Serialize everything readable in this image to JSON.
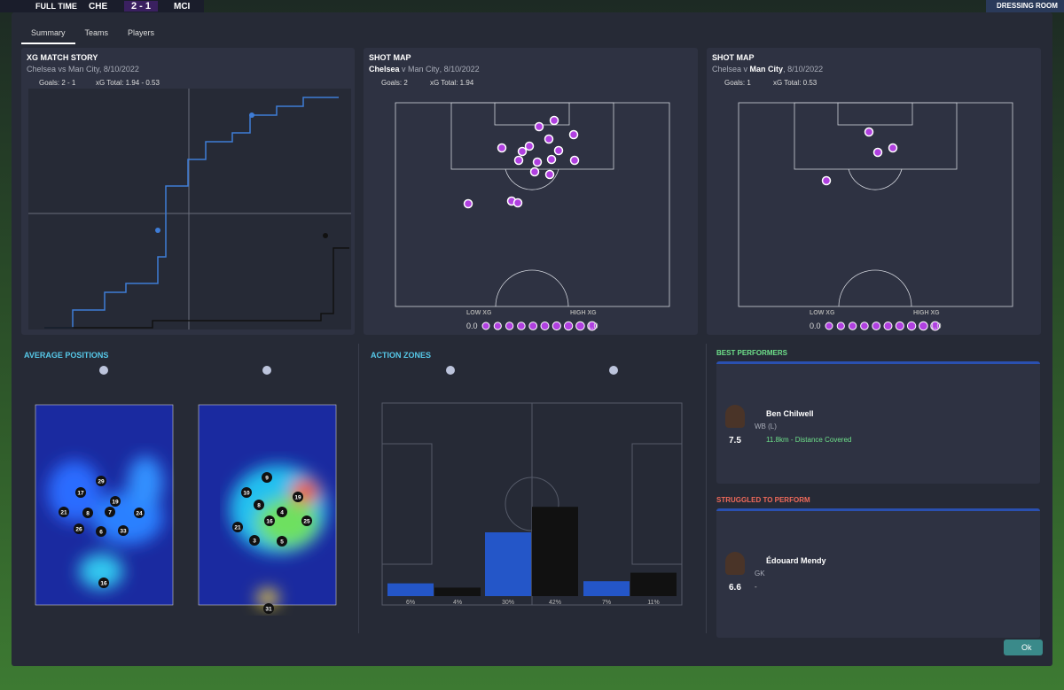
{
  "header": {
    "status": "FULL TIME",
    "home": "CHE",
    "score": "2 - 1",
    "away": "MCI",
    "button": "DRESSING ROOM"
  },
  "tabs": [
    "Summary",
    "Teams",
    "Players"
  ],
  "xg_story": {
    "title": "XG MATCH STORY",
    "subtitle": "Chelsea vs Man City, 8/10/2022",
    "goals": "Goals: 2 - 1",
    "xg": "xG Total: 1.94 - 0.53"
  },
  "shot_maps": [
    {
      "title": "SHOT MAP",
      "home": "Chelsea",
      "sep": " v ",
      "away": "Man City",
      "date": ", 8/10/2022",
      "goals": "Goals: 2",
      "xg": "xG Total: 1.94",
      "low": "LOW XG",
      "high": "HIGH XG",
      "min": "0.0",
      "max": "1.0"
    },
    {
      "title": "SHOT MAP",
      "home": "Chelsea",
      "sep": " v ",
      "away": "Man City",
      "date": ", 8/10/2022",
      "goals": "Goals: 1",
      "xg": "xG Total: 0.53",
      "low": "LOW XG",
      "high": "HIGH XG",
      "min": "0.0",
      "max": "1.0"
    }
  ],
  "average_positions": {
    "title": "AVERAGE POSITIONS",
    "home": [
      "29",
      "17",
      "19",
      "21",
      "8",
      "7",
      "24",
      "26",
      "6",
      "33",
      "16"
    ],
    "away": [
      "9",
      "10",
      "19",
      "8",
      "4",
      "16",
      "25",
      "21",
      "3",
      "5",
      "31"
    ]
  },
  "action_zones": {
    "title": "ACTION ZONES",
    "values": [
      6,
      4,
      30,
      42,
      7,
      11
    ],
    "value_labels": [
      "6%",
      "4%",
      "30%",
      "42%",
      "7%",
      "11%"
    ]
  },
  "best": {
    "title": "BEST PERFORMERS",
    "name": "Ben Chilwell",
    "position": "WB (L)",
    "rating": "7.5",
    "stat": "11.8km - Distance Covered"
  },
  "struggled": {
    "title": "STRUGGLED TO PERFORM",
    "name": "Édouard Mendy",
    "position": "GK",
    "rating": "6.6",
    "stat": "-"
  },
  "ok": "Ok"
}
